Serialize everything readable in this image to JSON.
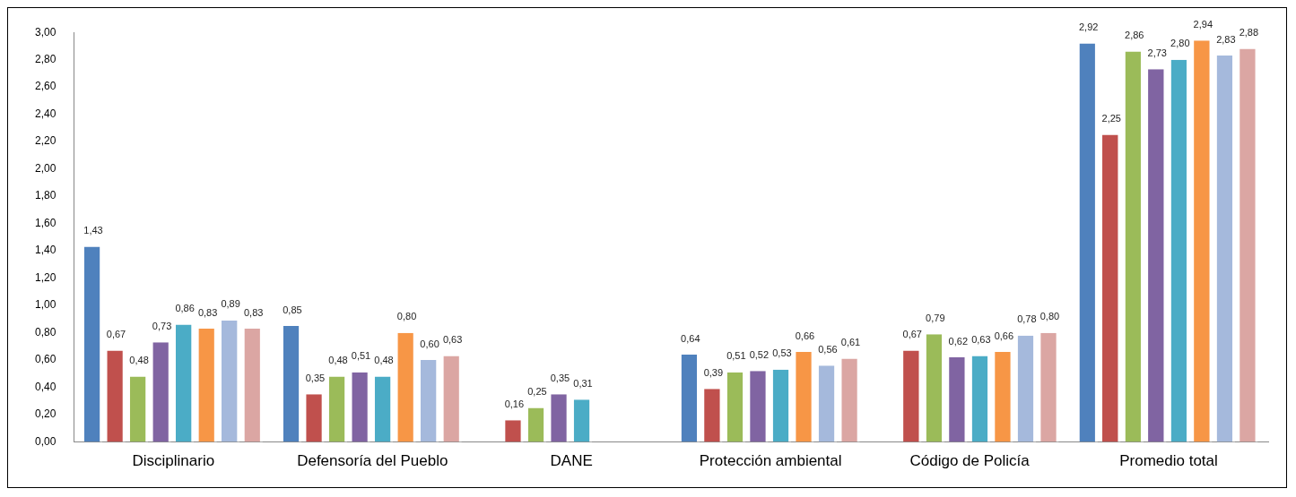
{
  "chart_data": {
    "type": "bar",
    "categories": [
      "Disciplinario",
      "Defensoría del Pueblo",
      "DANE",
      "Protección ambiental",
      "Código de Policía",
      "Promedio total"
    ],
    "series": [
      {
        "color": "#4f81bd",
        "values": [
          1.43,
          0.85,
          null,
          0.64,
          null,
          2.92
        ],
        "value_labels": [
          "1,43",
          "0,85",
          null,
          "0,64",
          null,
          "2,92"
        ]
      },
      {
        "color": "#c0504d",
        "values": [
          0.67,
          0.35,
          0.16,
          0.39,
          0.67,
          2.25
        ],
        "value_labels": [
          "0,67",
          "0,35",
          "0,16",
          "0,39",
          "0,67",
          "2,25"
        ]
      },
      {
        "color": "#9bbb59",
        "values": [
          0.48,
          0.48,
          0.25,
          0.51,
          0.79,
          2.86
        ],
        "value_labels": [
          "0,48",
          "0,48",
          "0,25",
          "0,51",
          "0,79",
          "2,86"
        ]
      },
      {
        "color": "#8064a2",
        "values": [
          0.73,
          0.51,
          0.35,
          0.52,
          0.62,
          2.73
        ],
        "value_labels": [
          "0,73",
          "0,51",
          "0,35",
          "0,52",
          "0,62",
          "2,73"
        ]
      },
      {
        "color": "#4bacc6",
        "values": [
          0.86,
          0.48,
          0.31,
          0.53,
          0.63,
          2.8
        ],
        "value_labels": [
          "0,86",
          "0,48",
          "0,31",
          "0,53",
          "0,63",
          "2,80"
        ]
      },
      {
        "color": "#f79646",
        "values": [
          0.83,
          0.8,
          null,
          0.66,
          0.66,
          2.94
        ],
        "value_labels": [
          "0,83",
          "0,80",
          null,
          "0,66",
          "0,66",
          "2,94"
        ]
      },
      {
        "color": "#a5b9dc",
        "values": [
          0.89,
          0.6,
          null,
          0.56,
          0.78,
          2.83
        ],
        "value_labels": [
          "0,89",
          "0,60",
          null,
          "0,56",
          "0,78",
          "2,83"
        ]
      },
      {
        "color": "#dba6a3",
        "values": [
          0.83,
          0.63,
          null,
          0.61,
          0.8,
          2.88
        ],
        "value_labels": [
          "0,83",
          "0,63",
          null,
          "0,61",
          "0,80",
          "2,88"
        ]
      }
    ],
    "ylim": [
      0,
      3
    ],
    "yticks": [
      {
        "value": 0,
        "label": "0,00"
      },
      {
        "value": 0.2,
        "label": "0,20"
      },
      {
        "value": 0.4,
        "label": "0,40"
      },
      {
        "value": 0.6,
        "label": "0,60"
      },
      {
        "value": 0.8,
        "label": "0,80"
      },
      {
        "value": 1,
        "label": "1,00"
      },
      {
        "value": 1.2,
        "label": "1,20"
      },
      {
        "value": 1.4,
        "label": "1,40"
      },
      {
        "value": 1.6,
        "label": "1,60"
      },
      {
        "value": 1.8,
        "label": "1,80"
      },
      {
        "value": 2,
        "label": "2,00"
      },
      {
        "value": 2.2,
        "label": "2,20"
      },
      {
        "value": 2.4,
        "label": "2,40"
      },
      {
        "value": 2.6,
        "label": "2,60"
      },
      {
        "value": 2.8,
        "label": "2,80"
      },
      {
        "value": 3,
        "label": "3,00"
      }
    ],
    "grid": false,
    "legend": false
  }
}
